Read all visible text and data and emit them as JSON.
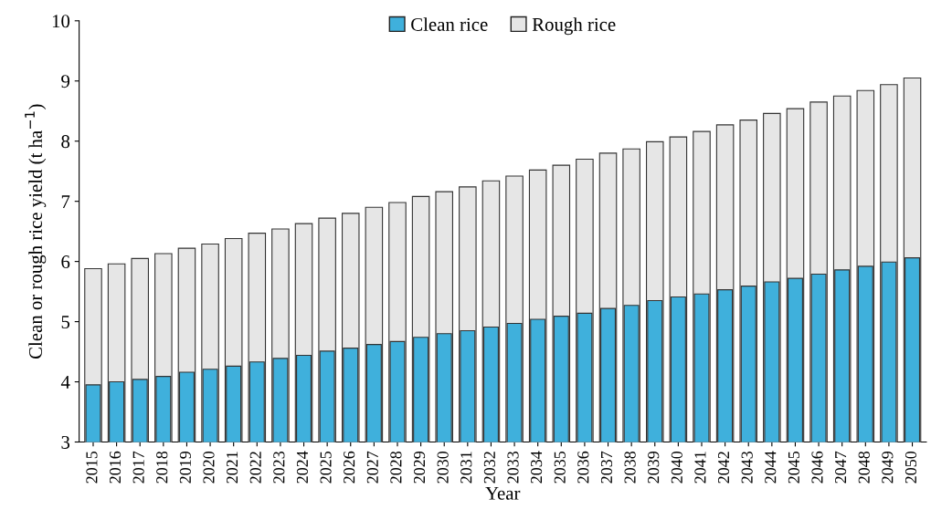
{
  "chart_data": {
    "type": "bar",
    "xlabel": "Year",
    "ylabel": "Clean or rough rice yield (t ha$^{−1}$)",
    "categories": [
      "2015",
      "2016",
      "2017",
      "2018",
      "2019",
      "2020",
      "2021",
      "2022",
      "2023",
      "2024",
      "2025",
      "2026",
      "2027",
      "2028",
      "2029",
      "2030",
      "2031",
      "2032",
      "2033",
      "2034",
      "2035",
      "2036",
      "2037",
      "2038",
      "2039",
      "2040",
      "2041",
      "2042",
      "2043",
      "2044",
      "2045",
      "2046",
      "2047",
      "2048",
      "2049",
      "2050"
    ],
    "series": [
      {
        "name": "Clean rice",
        "color": "#3fb0dc",
        "values": [
          3.95,
          4.0,
          4.04,
          4.09,
          4.16,
          4.21,
          4.26,
          4.33,
          4.39,
          4.44,
          4.51,
          4.56,
          4.62,
          4.67,
          4.74,
          4.8,
          4.85,
          4.91,
          4.97,
          5.04,
          5.09,
          5.14,
          5.22,
          5.27,
          5.35,
          5.41,
          5.46,
          5.53,
          5.59,
          5.66,
          5.72,
          5.79,
          5.86,
          5.92,
          5.99,
          6.06
        ]
      },
      {
        "name": "Rough rice",
        "color": "#e6e6e6",
        "values": [
          5.88,
          5.96,
          6.05,
          6.13,
          6.22,
          6.29,
          6.38,
          6.47,
          6.54,
          6.63,
          6.72,
          6.8,
          6.9,
          6.98,
          7.08,
          7.16,
          7.24,
          7.34,
          7.42,
          7.52,
          7.6,
          7.7,
          7.8,
          7.87,
          7.99,
          8.07,
          8.16,
          8.27,
          8.35,
          8.46,
          8.54,
          8.65,
          8.75,
          8.84,
          8.94,
          9.05
        ]
      }
    ],
    "ylim": [
      3,
      10
    ],
    "yticks": [
      3,
      4,
      5,
      6,
      7,
      8,
      9,
      10
    ],
    "grid": false,
    "legend": "top"
  }
}
